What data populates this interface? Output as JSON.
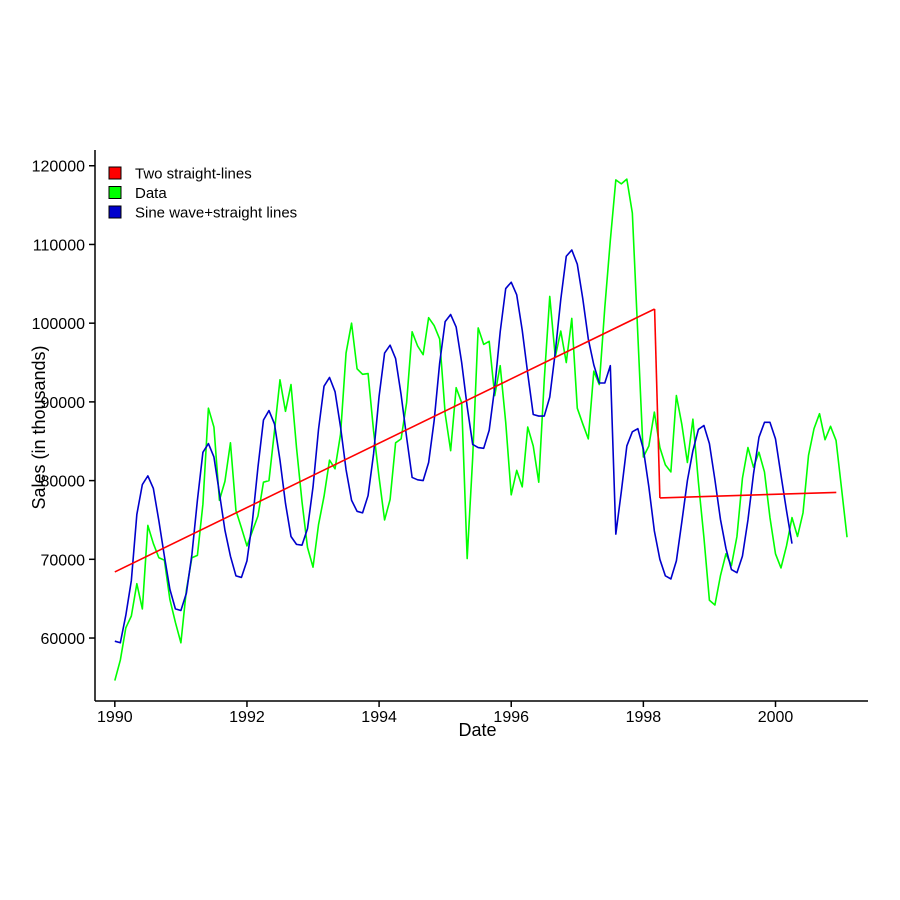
{
  "chart_data": {
    "type": "line",
    "title": "",
    "xlabel": "Date",
    "ylabel": "Sales (in thousands)",
    "xlim": [
      1989.7,
      2001.4
    ],
    "ylim": [
      52000,
      122000
    ],
    "x_ticks": [
      1990,
      1992,
      1994,
      1996,
      1998,
      2000
    ],
    "x_tick_labels": [
      "1990",
      "1992",
      "1994",
      "1996",
      "1998",
      "2000"
    ],
    "y_ticks": [
      60000,
      70000,
      80000,
      90000,
      100000,
      110000,
      120000
    ],
    "y_tick_labels": [
      "60000",
      "70000",
      "80000",
      "90000",
      "100000",
      "110000",
      "120000"
    ],
    "grid": false,
    "legend_position": "top-left",
    "colors": {
      "Two straight-lines": "#ff0000",
      "Data": "#00ff00",
      "Sine wave+straight lines": "#0000cc"
    },
    "x_start": 1990.0,
    "x_step": 0.08333,
    "series": [
      {
        "name": "Data",
        "values": [
          54600,
          57200,
          61300,
          62800,
          66900,
          63700,
          74300,
          72000,
          70200,
          69900,
          64900,
          62000,
          59400,
          66100,
          70200,
          70500,
          77000,
          89200,
          86800,
          77500,
          79900,
          84800,
          76200,
          74000,
          71700,
          73600,
          75500,
          79800,
          80000,
          86300,
          92800,
          88800,
          92200,
          84200,
          77300,
          71500,
          69000,
          74400,
          78000,
          82600,
          81500,
          85900,
          96200,
          100000,
          94200,
          93500,
          93600,
          86300,
          80400,
          75000,
          77600,
          84800,
          85300,
          89900,
          98900,
          97100,
          96000,
          100700,
          99700,
          98000,
          88500,
          83800,
          91800,
          89900,
          70100,
          82900,
          99400,
          97300,
          97700,
          90800,
          94600,
          87400,
          78200,
          81300,
          79200,
          86800,
          84400,
          79800,
          92800,
          103400,
          95700,
          99000,
          95000,
          100600,
          89200,
          87200,
          85300,
          93900,
          92200,
          102000,
          110500,
          118200,
          117700,
          118300,
          114000,
          98500,
          83000,
          84400,
          88700,
          84200,
          82000,
          81100,
          90800,
          87100,
          82300,
          87800,
          79800,
          72800,
          64800,
          64200,
          67900,
          70700,
          69200,
          72900,
          80300,
          84200,
          81700,
          83600,
          81100,
          75300,
          70700,
          68900,
          71700,
          75300,
          72900,
          75900,
          83200,
          86600,
          88500,
          85200,
          86900,
          85100,
          79000,
          72800
        ]
      },
      {
        "name": "Sine wave+straight lines",
        "values": [
          59600,
          59400,
          62900,
          67300,
          75700,
          79500,
          80600,
          79000,
          74900,
          70400,
          66200,
          63700,
          63500,
          65700,
          70600,
          77500,
          83600,
          84700,
          83000,
          78400,
          73700,
          70400,
          67900,
          67700,
          69800,
          74900,
          81700,
          87700,
          88900,
          87200,
          82600,
          77100,
          72900,
          71900,
          71800,
          73900,
          79200,
          86500,
          92000,
          93100,
          91300,
          86800,
          81400,
          77500,
          76100,
          75900,
          78100,
          83400,
          90700,
          96200,
          97200,
          95500,
          90900,
          85500,
          80400,
          80100,
          80000,
          82300,
          87600,
          94900,
          100200,
          101100,
          99500,
          95000,
          89400,
          84600,
          84200,
          84100,
          86400,
          91800,
          98900,
          104400,
          105200,
          103600,
          99100,
          93600,
          88400,
          88200,
          88200,
          90600,
          96300,
          103000,
          108500,
          109300,
          107500,
          103100,
          98000,
          94700,
          92400,
          92400,
          94600,
          73200,
          78600,
          84400,
          86200,
          86600,
          84000,
          79200,
          73600,
          70000,
          67900,
          67500,
          69800,
          74800,
          80000,
          83800,
          86500,
          87000,
          84700,
          80100,
          75100,
          71400,
          68700,
          68300,
          70400,
          75000,
          80800,
          85500,
          87400,
          87400,
          85300,
          80700,
          76200,
          72000
        ]
      },
      {
        "name": "Two straight-lines",
        "segments": [
          {
            "x": [
              1990.0,
              1998.17
            ],
            "y": [
              68400,
              101800
            ]
          },
          {
            "x": [
              1998.17,
              1998.25
            ],
            "y": [
              101800,
              77800
            ]
          },
          {
            "x": [
              1998.25,
              2000.92
            ],
            "y": [
              77800,
              78500
            ]
          }
        ]
      }
    ],
    "legend": [
      "Two straight-lines",
      "Data",
      "Sine wave+straight lines"
    ]
  }
}
